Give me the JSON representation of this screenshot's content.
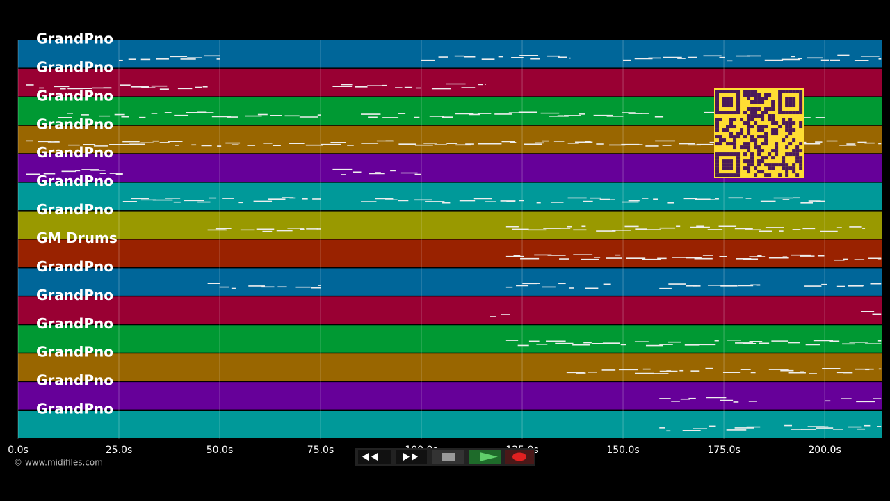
{
  "tracks": [
    {
      "label": "GrandPno",
      "color": "#006699"
    },
    {
      "label": "GrandPno",
      "color": "#990033"
    },
    {
      "label": "GrandPno",
      "color": "#009933"
    },
    {
      "label": "GrandPno",
      "color": "#996600"
    },
    {
      "label": "GrandPno",
      "color": "#660099"
    },
    {
      "label": "GrandPno",
      "color": "#009999"
    },
    {
      "label": "GrandPno",
      "color": "#999900"
    },
    {
      "label": "GM Drums",
      "color": "#992200"
    },
    {
      "label": "GrandPno",
      "color": "#006699"
    },
    {
      "label": "GrandPno",
      "color": "#990033"
    },
    {
      "label": "GrandPno",
      "color": "#009933"
    },
    {
      "label": "GrandPno",
      "color": "#996600"
    },
    {
      "label": "GrandPno",
      "color": "#660099"
    },
    {
      "label": "GrandPno",
      "color": "#009999"
    }
  ],
  "axis": {
    "xlim": [
      0,
      214.3
    ],
    "xticks": [
      {
        "value": 0,
        "label": "0.0s"
      },
      {
        "value": 25,
        "label": "25.0s"
      },
      {
        "value": 50,
        "label": "50.0s"
      },
      {
        "value": 75,
        "label": "75.0s"
      },
      {
        "value": 100,
        "label": "100.0s"
      },
      {
        "value": 125,
        "label": "125.0s"
      },
      {
        "value": 150,
        "label": "150.0s"
      },
      {
        "value": 175,
        "label": "175.0s"
      },
      {
        "value": 200,
        "label": "200.0s"
      }
    ]
  },
  "footer": {
    "copyright": "© www.midifiles.com"
  }
}
